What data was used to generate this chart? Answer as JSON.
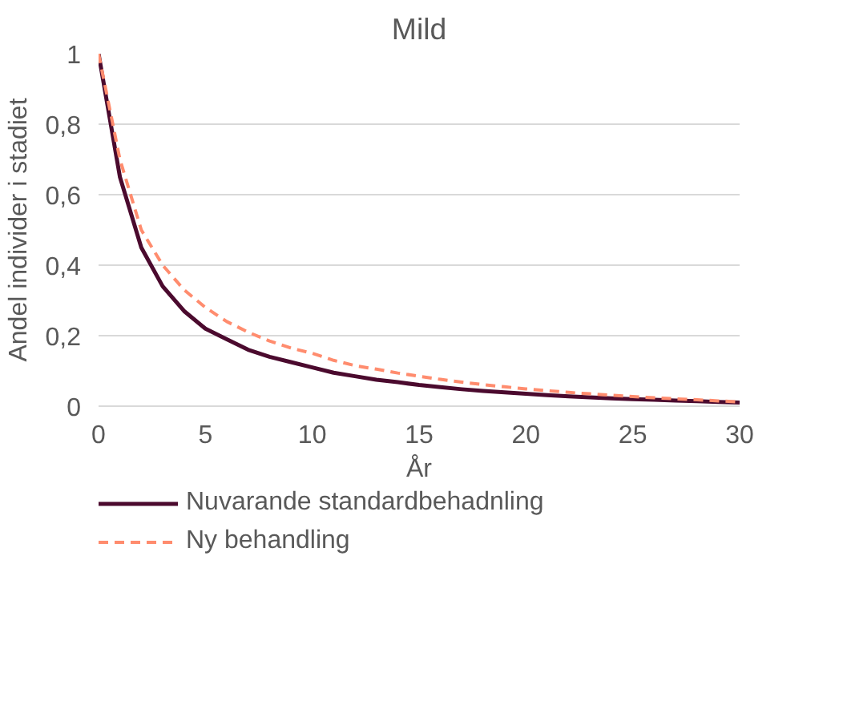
{
  "chart_data": {
    "type": "line",
    "title": "Mild",
    "xlabel": "År",
    "ylabel": "Andel individer i stadiet",
    "x": [
      0,
      1,
      2,
      3,
      4,
      5,
      6,
      7,
      8,
      9,
      10,
      11,
      12,
      13,
      14,
      15,
      16,
      17,
      18,
      19,
      20,
      21,
      22,
      23,
      24,
      25,
      26,
      27,
      28,
      29,
      30
    ],
    "series": [
      {
        "name": "Nuvarande standardbehadnling",
        "color": "#4b0a2e",
        "line_style": "solid",
        "values": [
          1,
          0.65,
          0.45,
          0.34,
          0.27,
          0.22,
          0.19,
          0.16,
          0.14,
          0.125,
          0.11,
          0.095,
          0.085,
          0.075,
          0.068,
          0.06,
          0.054,
          0.048,
          0.043,
          0.039,
          0.035,
          0.031,
          0.028,
          0.025,
          0.022,
          0.02,
          0.018,
          0.016,
          0.014,
          0.012,
          0.01
        ]
      },
      {
        "name": "Ny behandling",
        "color": "#ff8c6e",
        "line_style": "dashed",
        "values": [
          1,
          0.7,
          0.5,
          0.4,
          0.33,
          0.28,
          0.24,
          0.21,
          0.185,
          0.165,
          0.15,
          0.13,
          0.115,
          0.105,
          0.094,
          0.085,
          0.076,
          0.068,
          0.061,
          0.055,
          0.049,
          0.044,
          0.039,
          0.035,
          0.031,
          0.027,
          0.024,
          0.021,
          0.018,
          0.015,
          0.012
        ]
      }
    ],
    "xlim": [
      0,
      30
    ],
    "xticks": [
      0,
      5,
      10,
      15,
      20,
      25,
      30
    ],
    "ylim": [
      0,
      1
    ],
    "yticks": [
      {
        "value": 0,
        "label": "0"
      },
      {
        "value": 0.2,
        "label": "0,2"
      },
      {
        "value": 0.4,
        "label": "0,4"
      },
      {
        "value": 0.6,
        "label": "0,6"
      },
      {
        "value": 0.8,
        "label": "0,8"
      },
      {
        "value": 1,
        "label": "1"
      }
    ],
    "grid": "y",
    "legend": "bottom",
    "marker": "none"
  }
}
